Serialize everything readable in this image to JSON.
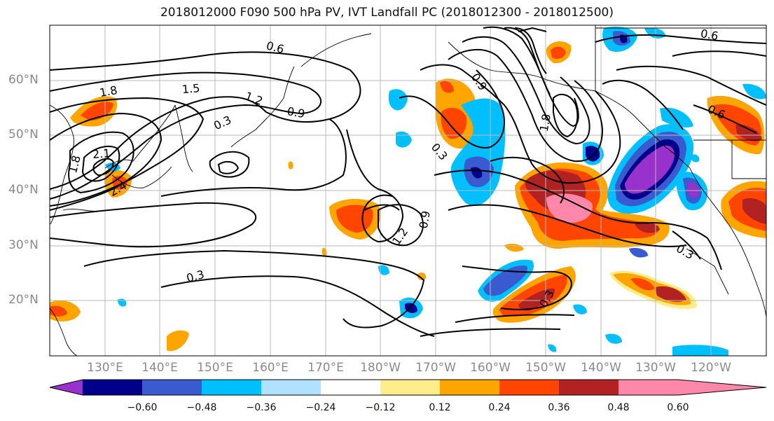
{
  "title": "2018012000 F090 500 hPa PV, IVT Landfall PC (2018012300 - 2018012500)",
  "lat_labels": [
    "60°N",
    "50°N",
    "40°N",
    "30°N",
    "20°N"
  ],
  "lon_labels": [
    "130°E",
    "140°E",
    "150°E",
    "160°E",
    "170°E",
    "180°W",
    "170°W",
    "160°W",
    "150°W",
    "140°W",
    "130°W",
    "120°W"
  ],
  "contour_labels": [
    "0.6",
    "1.8",
    "1.5",
    "1.2",
    "0.9",
    "0.3",
    "2.1",
    "1.8",
    "2.4",
    "0.3",
    "0.3",
    "0.9",
    "1.2",
    "1.8",
    "0.3",
    "0.3",
    "0.6",
    "0.6",
    "0.9"
  ],
  "colorbar": {
    "ticks": [
      "−0.60",
      "−0.48",
      "−0.36",
      "−0.24",
      "−0.12",
      "0.12",
      "0.24",
      "0.36",
      "0.48",
      "0.60"
    ],
    "colors": [
      "#9932cc",
      "#00008b",
      "#3a5bd0",
      "#00bfff",
      "#b0e2ff",
      "#ffffff",
      "#ffec8b",
      "#ffa500",
      "#ff4500",
      "#b22222",
      "#ff88aa"
    ]
  },
  "fill_colors": {
    "neg_060": "#9932cc",
    "neg_048": "#00008b",
    "neg_036": "#3a5bd0",
    "neg_024": "#00bfff",
    "neg_012": "#b0e2ff",
    "pos_012": "#ffec8b",
    "pos_024": "#ffa500",
    "pos_036": "#ff4500",
    "pos_048": "#b22222",
    "pos_060": "#ff88aa"
  }
}
